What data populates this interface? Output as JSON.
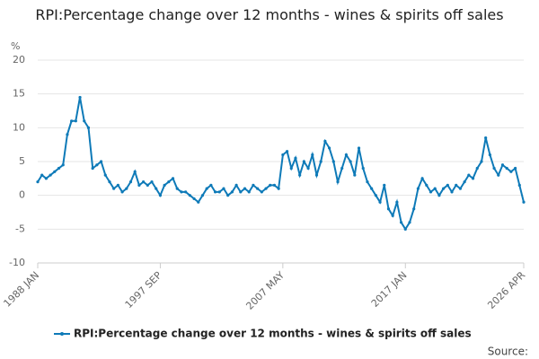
{
  "chart_data": {
    "type": "line",
    "title": "RPI:Percentage change over 12 months - wines & spirits off sales",
    "y_label": "%",
    "source": "Source:",
    "categories": [
      "1988 JAN",
      null,
      null,
      null,
      null,
      null,
      null,
      null,
      null,
      null,
      null,
      null,
      null,
      null,
      null,
      null,
      null,
      null,
      null,
      null,
      null,
      null,
      null,
      null,
      null,
      null,
      null,
      null,
      null,
      "1997 SEP",
      null,
      null,
      null,
      null,
      null,
      null,
      null,
      null,
      null,
      null,
      null,
      null,
      null,
      null,
      null,
      null,
      null,
      null,
      null,
      null,
      null,
      null,
      null,
      null,
      null,
      null,
      null,
      null,
      "2007 MAY",
      null,
      null,
      null,
      null,
      null,
      null,
      null,
      null,
      null,
      null,
      null,
      null,
      null,
      null,
      null,
      null,
      null,
      null,
      null,
      null,
      null,
      null,
      null,
      null,
      null,
      null,
      null,
      null,
      "2017 JAN",
      null,
      null,
      null,
      null,
      null,
      null,
      null,
      null,
      null,
      null,
      null,
      null,
      null,
      null,
      null,
      null,
      null,
      null,
      null,
      null,
      null,
      null,
      null,
      null,
      null,
      null,
      null,
      "2026 APR"
    ],
    "series": [
      {
        "name": "RPI:Percentage change over 12 months - wines & spirits off sales",
        "color": "#0e7ab8",
        "values": [
          2,
          3,
          2.5,
          3,
          3.5,
          4,
          4.5,
          9,
          11,
          11,
          14.5,
          11,
          10,
          4,
          4.5,
          5,
          3,
          2,
          1,
          1.5,
          0.5,
          1,
          2,
          3.5,
          1.5,
          2,
          1.5,
          2,
          1,
          0,
          1.5,
          2,
          2.5,
          1,
          0.5,
          0.5,
          0,
          -0.5,
          -1,
          0,
          1,
          1.5,
          0.5,
          0.5,
          1,
          0,
          0.5,
          1.5,
          0.5,
          1,
          0.5,
          1.5,
          1,
          0.5,
          1,
          1.5,
          1.5,
          1,
          6,
          6.5,
          4,
          5.5,
          3,
          5,
          4,
          6,
          3,
          5,
          8,
          7,
          5,
          2,
          4,
          6,
          5,
          3,
          7,
          4,
          2,
          1,
          0,
          -1,
          1.5,
          -2,
          -3,
          -1,
          -4,
          -5,
          -4,
          -2,
          1,
          2.5,
          1.5,
          0.5,
          1,
          0,
          1,
          1.5,
          0.5,
          1.5,
          1,
          2,
          3,
          2.5,
          4,
          5,
          8.5,
          6,
          4,
          3,
          4.5,
          4,
          3.5,
          4,
          1.5,
          -1
        ]
      }
    ],
    "ylim": [
      -10,
      20
    ],
    "yticks": [
      -10,
      -5,
      0,
      5,
      10,
      15,
      20
    ],
    "grid": true
  }
}
